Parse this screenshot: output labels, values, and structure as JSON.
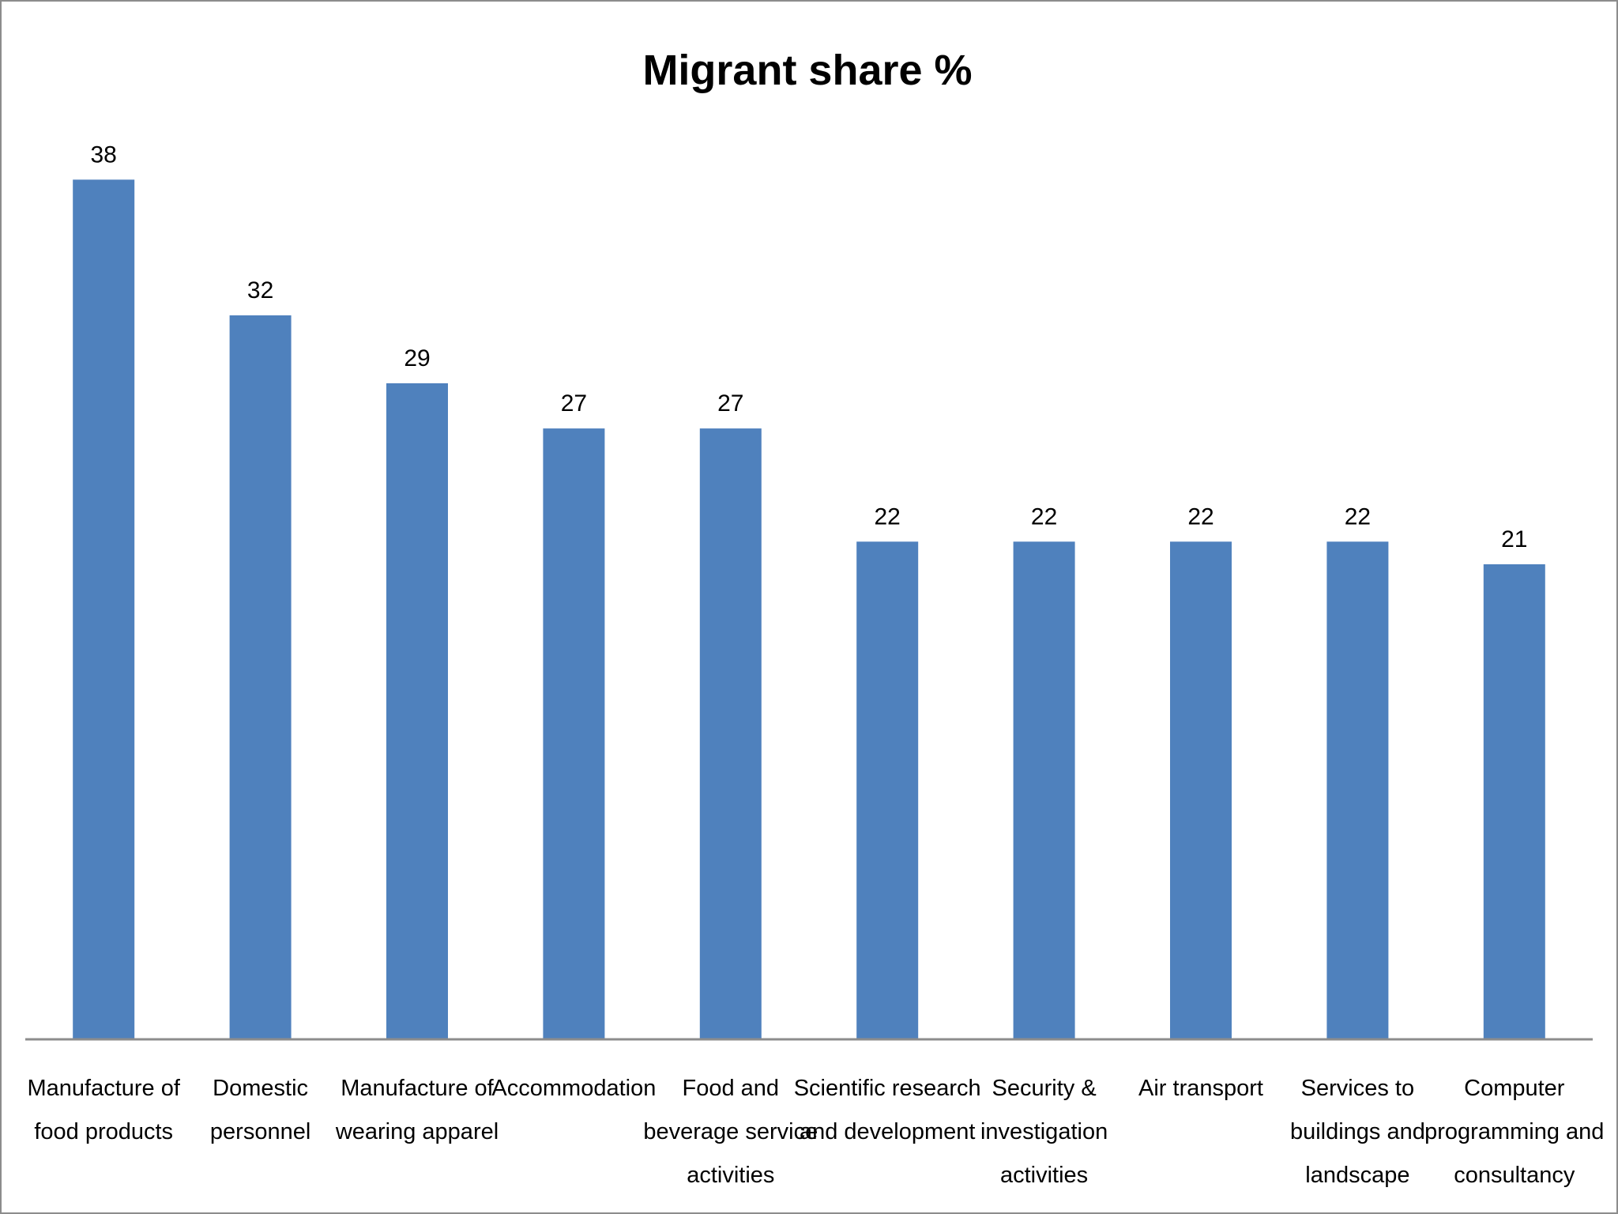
{
  "chart_data": {
    "type": "bar",
    "title": "Migrant share %",
    "xlabel": "",
    "ylabel": "",
    "ylim": [
      0,
      40
    ],
    "grid": false,
    "legend": "none",
    "bar_color": "#4f81bd",
    "axis_color": "#8c8c8c",
    "categories": [
      [
        "Manufacture of",
        "food products"
      ],
      [
        "Domestic",
        "personnel"
      ],
      [
        "Manufacture of",
        "wearing apparel"
      ],
      [
        "Accommodation"
      ],
      [
        "Food and",
        "beverage service",
        "activities"
      ],
      [
        "Scientific research",
        "and development"
      ],
      [
        "Security &",
        "investigation",
        "activities"
      ],
      [
        "Air transport"
      ],
      [
        "Services to",
        "buildings and",
        "landscape"
      ],
      [
        "Computer",
        "programming and",
        "consultancy"
      ]
    ],
    "values": [
      38,
      32,
      29,
      27,
      27,
      22,
      22,
      22,
      22,
      21
    ],
    "data_labels": [
      "38",
      "32",
      "29",
      "27",
      "27",
      "22",
      "22",
      "22",
      "22",
      "21"
    ]
  }
}
